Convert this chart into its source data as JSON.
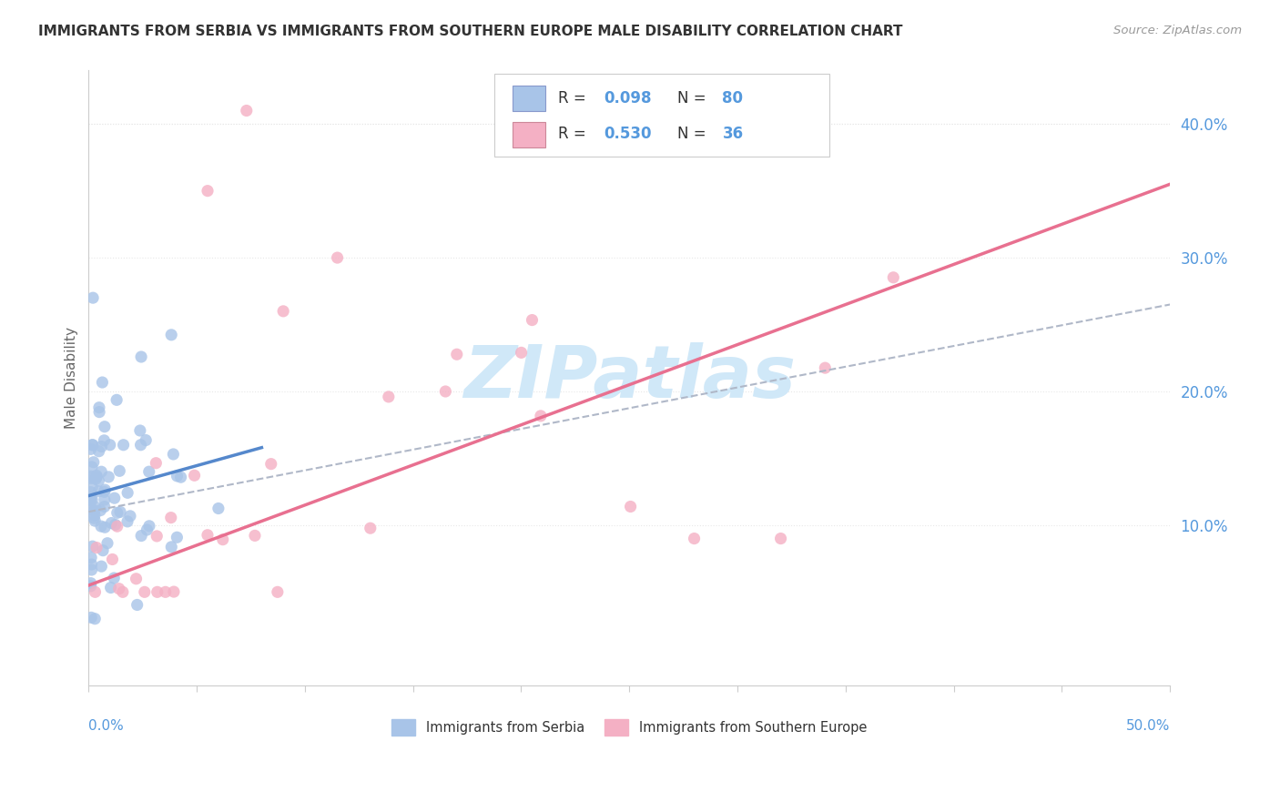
{
  "title": "IMMIGRANTS FROM SERBIA VS IMMIGRANTS FROM SOUTHERN EUROPE MALE DISABILITY CORRELATION CHART",
  "source": "Source: ZipAtlas.com",
  "ylabel": "Male Disability",
  "R_serbia": 0.098,
  "N_serbia": 80,
  "R_southern": 0.53,
  "N_southern": 36,
  "color_serbia": "#a8c4e8",
  "color_southern": "#f4b0c4",
  "color_serbia_line": "#5588cc",
  "color_southern_line": "#e87090",
  "color_dashed": "#b0b8c8",
  "xlim": [
    0.0,
    0.5
  ],
  "ylim": [
    -0.02,
    0.44
  ],
  "yticks": [
    0.1,
    0.2,
    0.3,
    0.4
  ],
  "background_color": "#ffffff",
  "grid_color": "#e8e8e8",
  "watermark_color": "#d0e8f8",
  "serbia_line_x0": 0.0,
  "serbia_line_y0": 0.122,
  "serbia_line_x1": 0.08,
  "serbia_line_y1": 0.158,
  "southern_line_x0": 0.0,
  "southern_line_y0": 0.055,
  "southern_line_x1": 0.5,
  "southern_line_y1": 0.355,
  "dashed_line_x0": 0.0,
  "dashed_line_y0": 0.11,
  "dashed_line_x1": 0.5,
  "dashed_line_y1": 0.265
}
